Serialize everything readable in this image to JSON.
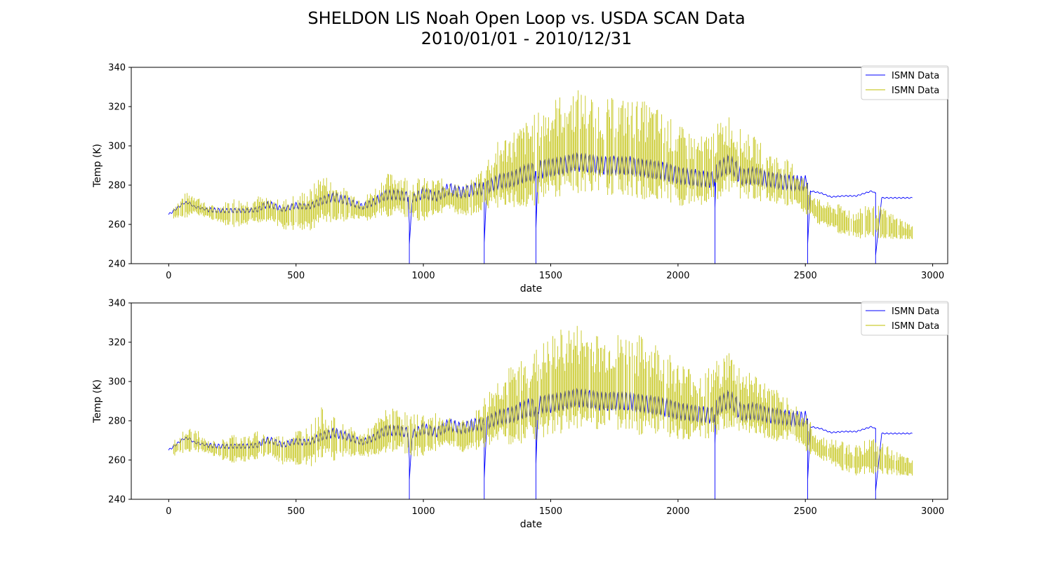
{
  "figure": {
    "title_line1": "SHELDON LIS Noah Open Loop vs. USDA SCAN Data",
    "title_line2": "2010/01/01 - 2010/12/31"
  },
  "chart_data": [
    {
      "type": "line",
      "xlabel": "date",
      "ylabel": "Temp (K)",
      "xlim": [
        -147,
        3059
      ],
      "ylim": [
        240,
        340
      ],
      "xticks": [
        0,
        500,
        1000,
        1500,
        2000,
        2500,
        3000
      ],
      "yticks": [
        240,
        260,
        280,
        300,
        320,
        340
      ],
      "legend": "top-right",
      "grid": false,
      "series": [
        {
          "name": "ISMN Data",
          "color": "#0000ff",
          "x": [
            0,
            20,
            40,
            60,
            80,
            100,
            120,
            150,
            200,
            250,
            300,
            350,
            380,
            400,
            450,
            480,
            500,
            550,
            600,
            650,
            700,
            760,
            800,
            850,
            900,
            940,
            945,
            955,
            1000,
            1050,
            1100,
            1150,
            1200,
            1237,
            1239,
            1250,
            1300,
            1350,
            1400,
            1440,
            1442,
            1450,
            1500,
            1550,
            1600,
            1650,
            1700,
            1750,
            1800,
            1850,
            1900,
            1950,
            2000,
            2050,
            2100,
            2143,
            2145,
            2150,
            2200,
            2220,
            2250,
            2300,
            2350,
            2400,
            2450,
            2500,
            2507,
            2509,
            2520,
            2560,
            2600,
            2650,
            2700,
            2760,
            2774,
            2776,
            2800,
            2850,
            2920
          ],
          "y": [
            265,
            267,
            269,
            271,
            271,
            269,
            268.5,
            267.5,
            267,
            267,
            267,
            267.5,
            270,
            270,
            267.5,
            269,
            269.5,
            269,
            272,
            274,
            272,
            269,
            271,
            275,
            275,
            274,
            240,
            273,
            276,
            274,
            278,
            276,
            278,
            278,
            240,
            279,
            282,
            283,
            286,
            287,
            240,
            288,
            289,
            290,
            292,
            291,
            290,
            290,
            290,
            289,
            288,
            287,
            285,
            284,
            283,
            283,
            240,
            287,
            291,
            289,
            284,
            285,
            283,
            282,
            281,
            281,
            281,
            240,
            277,
            276,
            274,
            274.5,
            274.5,
            277,
            276,
            240,
            273.5,
            273.5,
            273.5
          ]
        },
        {
          "name": "ISMN Data",
          "color": "#bfbf00",
          "x": [
            20,
            60,
            100,
            150,
            200,
            250,
            300,
            350,
            400,
            450,
            500,
            560,
            600,
            650,
            700,
            760,
            800,
            850,
            900,
            950,
            1000,
            1050,
            1100,
            1150,
            1200,
            1250,
            1300,
            1350,
            1400,
            1450,
            1500,
            1550,
            1600,
            1650,
            1700,
            1750,
            1800,
            1850,
            1900,
            1950,
            2000,
            2050,
            2100,
            2150,
            2200,
            2250,
            2300,
            2350,
            2400,
            2450,
            2500,
            2550,
            2600,
            2650,
            2700,
            2750,
            2800,
            2850,
            2920
          ],
          "y": [
            265,
            268,
            269,
            266,
            264,
            264,
            264,
            266,
            266,
            263,
            264,
            265,
            271,
            268,
            268,
            266,
            268,
            272,
            273,
            270,
            270,
            272,
            273,
            270,
            272,
            277,
            282,
            283,
            285,
            288,
            292,
            294,
            296,
            295,
            293,
            294,
            293,
            292,
            291,
            289,
            285,
            284,
            283,
            287,
            291,
            286,
            285,
            281,
            279,
            278,
            272,
            265,
            263,
            260,
            258,
            260,
            259,
            257,
            255
          ],
          "amplitude": [
            5,
            8,
            8,
            4,
            6,
            10,
            9,
            9,
            7,
            10,
            12,
            14,
            16,
            14,
            10,
            8,
            10,
            14,
            14,
            14,
            14,
            12,
            10,
            10,
            12,
            18,
            22,
            26,
            28,
            30,
            32,
            34,
            34,
            33,
            31,
            31,
            32,
            32,
            31,
            28,
            26,
            24,
            22,
            24,
            26,
            22,
            20,
            18,
            16,
            14,
            12,
            8,
            8,
            10,
            10,
            12,
            10,
            8,
            5
          ]
        }
      ]
    },
    {
      "type": "line",
      "xlabel": "date",
      "ylabel": "Temp (K)",
      "xlim": [
        -147,
        3059
      ],
      "ylim": [
        240,
        340
      ],
      "xticks": [
        0,
        500,
        1000,
        1500,
        2000,
        2500,
        3000
      ],
      "yticks": [
        240,
        260,
        280,
        300,
        320,
        340
      ],
      "legend": "top-right",
      "grid": false,
      "series": [
        {
          "name": "ISMN Data",
          "color": "#0000ff",
          "x": [
            0,
            20,
            40,
            60,
            80,
            100,
            120,
            150,
            200,
            250,
            300,
            350,
            380,
            400,
            450,
            480,
            500,
            550,
            600,
            650,
            700,
            760,
            800,
            850,
            900,
            940,
            945,
            955,
            1000,
            1050,
            1100,
            1150,
            1200,
            1237,
            1239,
            1250,
            1300,
            1350,
            1400,
            1440,
            1442,
            1450,
            1500,
            1550,
            1600,
            1650,
            1700,
            1750,
            1800,
            1850,
            1900,
            1950,
            2000,
            2050,
            2100,
            2143,
            2145,
            2150,
            2200,
            2220,
            2250,
            2300,
            2350,
            2400,
            2450,
            2500,
            2507,
            2509,
            2520,
            2560,
            2600,
            2650,
            2700,
            2760,
            2774,
            2776,
            2800,
            2850,
            2920
          ],
          "y": [
            265,
            267,
            269,
            271,
            271,
            269,
            268.5,
            267.5,
            267,
            267,
            267,
            267.5,
            270,
            270,
            267.5,
            269,
            269.5,
            269,
            272,
            274,
            272,
            269,
            271,
            275,
            275,
            274,
            240,
            273,
            276,
            274,
            278,
            276,
            278,
            278,
            240,
            279,
            282,
            283,
            286,
            287,
            240,
            288,
            289,
            290,
            292,
            291,
            290,
            290,
            290,
            289,
            288,
            287,
            285,
            284,
            283,
            283,
            240,
            287,
            291,
            289,
            284,
            285,
            283,
            282,
            281,
            281,
            281,
            240,
            277,
            276,
            274,
            274.5,
            274.5,
            277,
            276,
            240,
            273.5,
            273.5,
            273.5
          ]
        },
        {
          "name": "ISMN Data",
          "color": "#bfbf00",
          "x": [
            20,
            60,
            100,
            150,
            200,
            250,
            300,
            350,
            400,
            450,
            500,
            560,
            600,
            650,
            700,
            760,
            800,
            850,
            900,
            950,
            1000,
            1050,
            1100,
            1150,
            1200,
            1250,
            1300,
            1350,
            1400,
            1450,
            1500,
            1550,
            1600,
            1650,
            1700,
            1750,
            1800,
            1850,
            1900,
            1950,
            2000,
            2050,
            2100,
            2150,
            2200,
            2250,
            2300,
            2350,
            2400,
            2450,
            2500,
            2550,
            2600,
            2650,
            2700,
            2750,
            2800,
            2850,
            2920
          ],
          "y": [
            265,
            268,
            269,
            266,
            264,
            264,
            264,
            266,
            266,
            263,
            264,
            265,
            271,
            268,
            268,
            266,
            268,
            272,
            273,
            270,
            270,
            272,
            273,
            270,
            272,
            277,
            282,
            283,
            285,
            288,
            292,
            294,
            296,
            295,
            293,
            294,
            293,
            292,
            291,
            289,
            285,
            284,
            283,
            287,
            291,
            286,
            285,
            281,
            279,
            278,
            272,
            265,
            263,
            260,
            258,
            260,
            259,
            257,
            255
          ],
          "amplitude": [
            5,
            8,
            8,
            4,
            6,
            10,
            9,
            9,
            7,
            10,
            12,
            14,
            16,
            14,
            10,
            8,
            10,
            14,
            14,
            14,
            14,
            12,
            10,
            10,
            12,
            18,
            22,
            26,
            28,
            30,
            32,
            34,
            34,
            33,
            31,
            31,
            32,
            32,
            31,
            28,
            26,
            24,
            22,
            24,
            26,
            22,
            20,
            18,
            16,
            14,
            12,
            8,
            8,
            10,
            10,
            12,
            10,
            8,
            5
          ]
        }
      ]
    }
  ]
}
